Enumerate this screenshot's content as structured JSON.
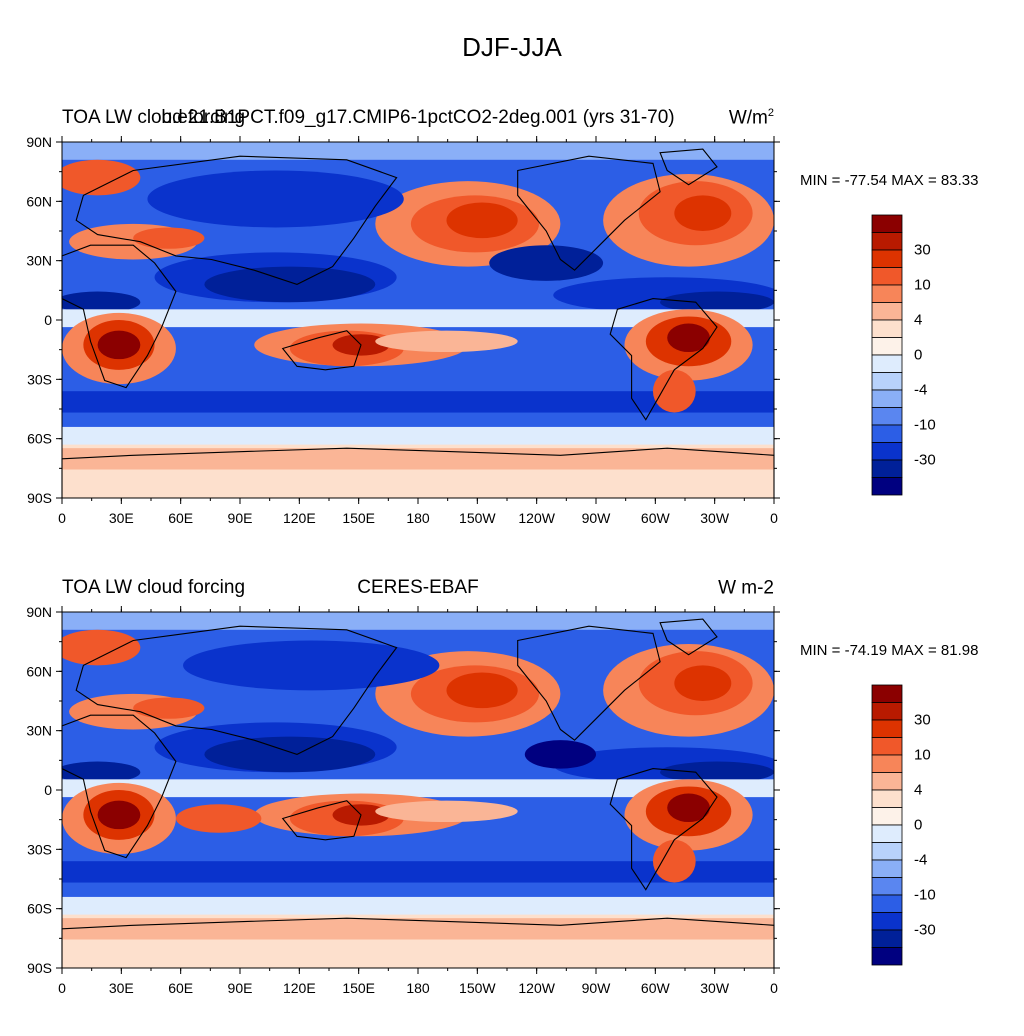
{
  "figure": {
    "title": "DJF-JJA"
  },
  "axes": {
    "lon_labels": [
      "0",
      "30E",
      "60E",
      "90E",
      "120E",
      "150E",
      "180",
      "150W",
      "120W",
      "90W",
      "60W",
      "30W",
      "0"
    ],
    "lat_labels": [
      "90N",
      "60N",
      "30N",
      "0",
      "30S",
      "60S",
      "90S"
    ]
  },
  "colorbar": {
    "labels": [
      "30",
      "10",
      "4",
      "0",
      "-4",
      "-10",
      "-30"
    ],
    "colors": [
      "#8b0000",
      "#b81a00",
      "#dd3300",
      "#f0582a",
      "#f78559",
      "#fab596",
      "#fde0cd",
      "#fdf2e9",
      "#deecfd",
      "#b8d2fb",
      "#8aaff7",
      "#5a86f0",
      "#2c5ee6",
      "#0a33cc",
      "#002099",
      "#000080"
    ]
  },
  "panels": [
    {
      "title_left": "TOA LW cloud forcing",
      "title_center": "b.e21.B1PCT.f09_g17.CMIP6-1pctCO2-2deg.001 (yrs 31-70)",
      "units": "W/m",
      "units_sup": "2",
      "min_max": "MIN = -77.54 MAX =  83.33"
    },
    {
      "title_left": "TOA LW cloud forcing",
      "title_center": "CERES-EBAF",
      "units": "W m-2",
      "units_sup": "",
      "min_max": "MIN = -74.19 MAX =  81.98"
    }
  ]
}
